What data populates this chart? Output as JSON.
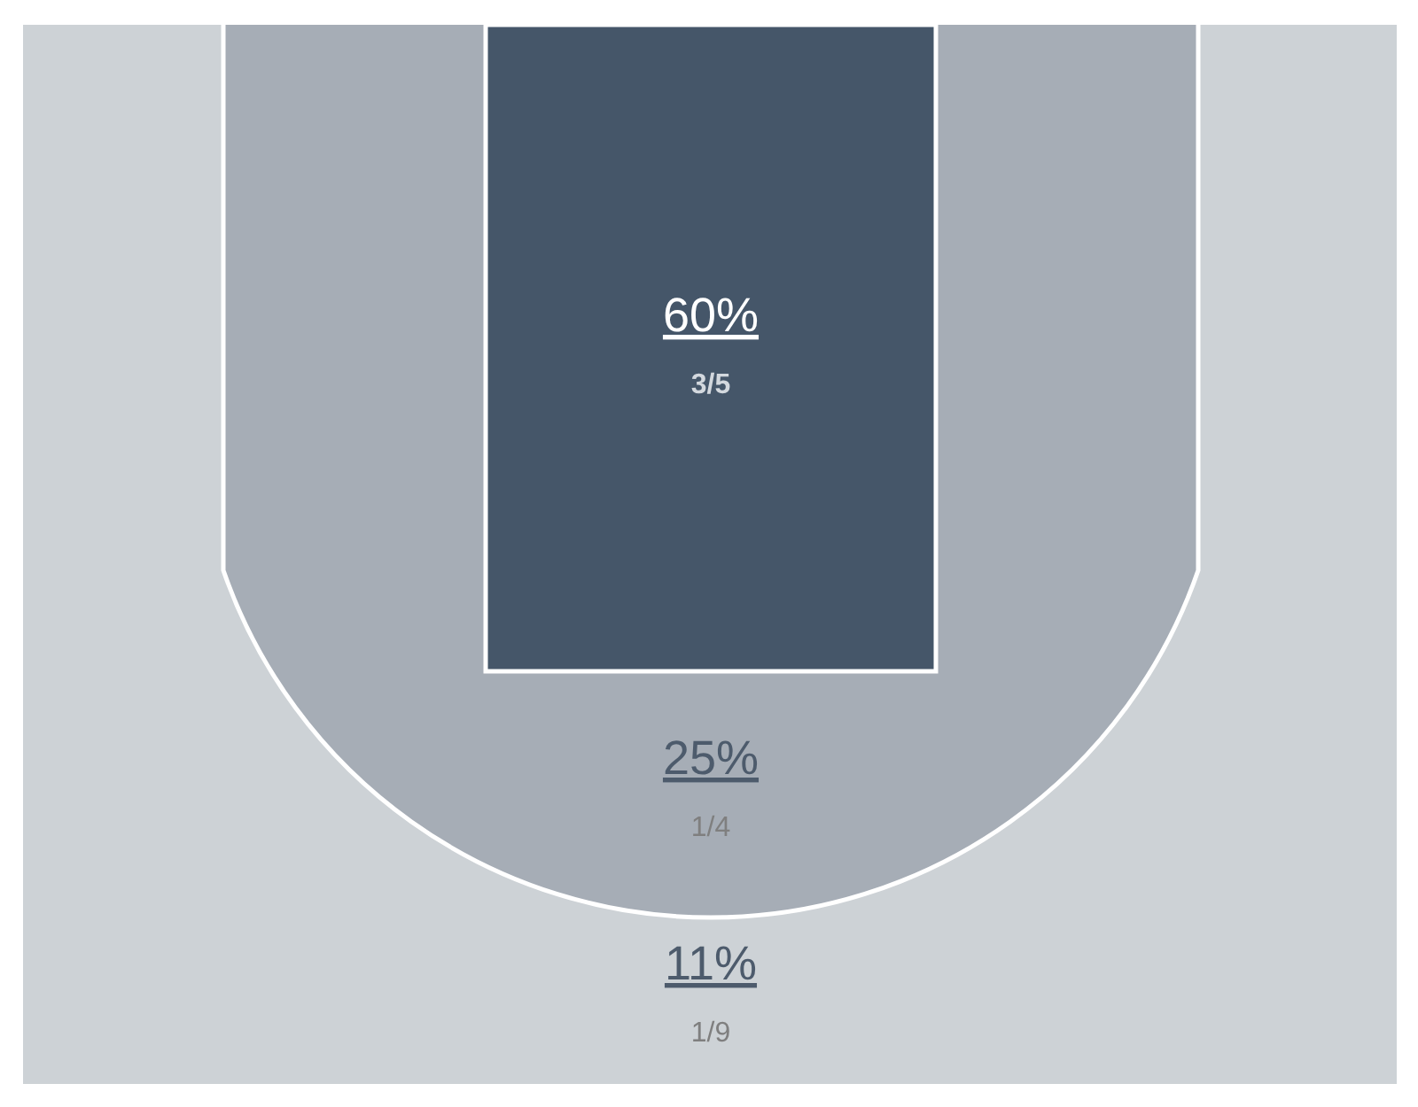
{
  "chart_data": {
    "type": "other",
    "values": [
      60,
      25,
      11
    ],
    "value_labels": [
      "60%",
      "25%",
      "11%"
    ],
    "colors": [
      "#455669",
      "#a6adb6",
      "#cdd2d6"
    ],
    "annotations": [
      "3/5",
      "1/4",
      "1/9"
    ]
  }
}
